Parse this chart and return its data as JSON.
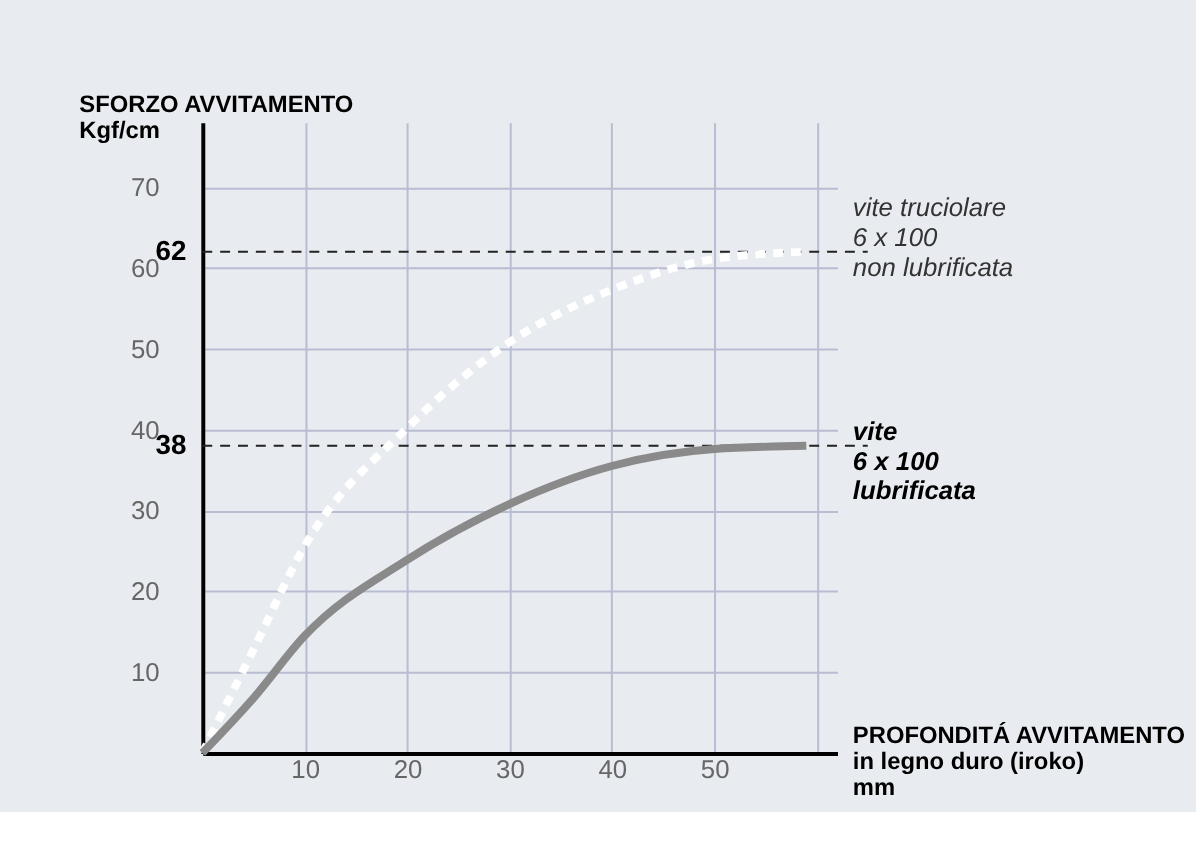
{
  "chart_data": {
    "type": "line",
    "xlabel": "PROFONDITÁ AVVITAMENTO\nin legno duro (iroko)\nmm",
    "ylabel": "SFORZO AVVITAMENTO\nKgf/cm",
    "x": [
      0,
      5,
      10,
      20,
      30,
      40,
      50,
      59
    ],
    "series": [
      {
        "name": "vite truciolare\n6 x 100\nnon lubrificata",
        "color": "#ffffff",
        "line_style": "dashed",
        "values": [
          0,
          12.8,
          25.6,
          40.2,
          50.8,
          57.3,
          61.1,
          62
        ]
      },
      {
        "name": "vite\n6 x 100\nlubrificata",
        "color": "#8a8a8a",
        "line_style": "solid",
        "values": [
          0,
          6.8,
          14.5,
          23.9,
          30.8,
          35.5,
          37.6,
          38
        ]
      }
    ],
    "xlim": [
      0,
      62
    ],
    "ylim": [
      0,
      78
    ],
    "xticks": [
      10,
      20,
      30,
      40,
      50,
      {
        "value": 60,
        "label": null
      }
    ],
    "yticks": [
      10,
      20,
      30,
      40,
      50,
      60,
      70
    ],
    "ref_lines": [
      {
        "axis": "y",
        "value": 62,
        "label": "62",
        "color": "#222222",
        "line_style": "dashed"
      },
      {
        "axis": "y",
        "value": 38,
        "label": "38",
        "color": "#222222",
        "line_style": "dashed"
      }
    ],
    "grid": true,
    "marker": "none"
  }
}
